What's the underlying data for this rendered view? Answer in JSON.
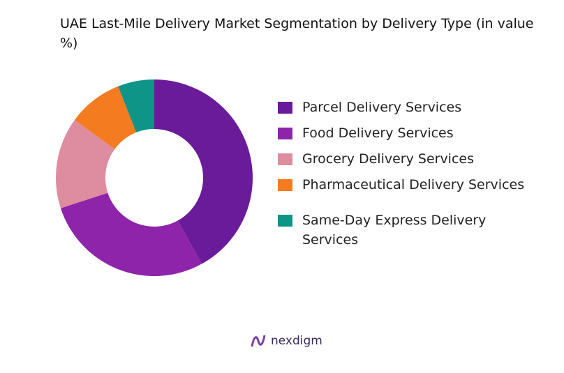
{
  "chart_data": {
    "type": "donut",
    "title": "UAE Last-Mile Delivery Market Segmentation by  Delivery Type (in value %)",
    "categories": [
      "Parcel Delivery Services",
      "Food Delivery Services",
      "Grocery Delivery Services",
      "Pharmaceutical Delivery Services",
      "Same-Day Express Delivery Services"
    ],
    "values": [
      42,
      28,
      15,
      9,
      6
    ],
    "colors": [
      "#6a1b9a",
      "#8e24aa",
      "#de8c9f",
      "#f47b20",
      "#0f9488"
    ]
  },
  "brand": "nexdigm"
}
